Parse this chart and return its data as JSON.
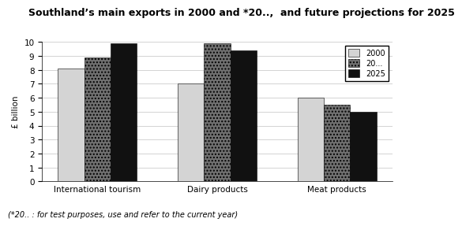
{
  "title": "Southland’s main exports in 2000 and *20..,  and future projections for 2025",
  "footnote": "(*20.. : for test purposes, use and refer to the current year)",
  "categories": [
    "International tourism",
    "Dairy products",
    "Meat products"
  ],
  "series": {
    "2000": [
      8.1,
      7.0,
      6.0
    ],
    "20...": [
      8.9,
      9.9,
      5.5
    ],
    "2025": [
      9.9,
      9.4,
      5.0
    ]
  },
  "legend_labels": [
    "2000",
    "20...",
    "2025"
  ],
  "bar_colors": {
    "2000": "#d4d4d4",
    "20...": "#707070",
    "2025": "#111111"
  },
  "hatch_patterns": {
    "2000": "",
    "20...": "....",
    "2025": ""
  },
  "ylabel": "£ billion",
  "ylim": [
    0,
    10
  ],
  "yticks": [
    0,
    1,
    2,
    3,
    4,
    5,
    6,
    7,
    8,
    9,
    10
  ],
  "bar_width": 0.22,
  "background_color": "#ffffff",
  "grid_color": "#cccccc",
  "title_fontsize": 9,
  "axis_fontsize": 7.5,
  "legend_fontsize": 7,
  "footnote_fontsize": 7
}
